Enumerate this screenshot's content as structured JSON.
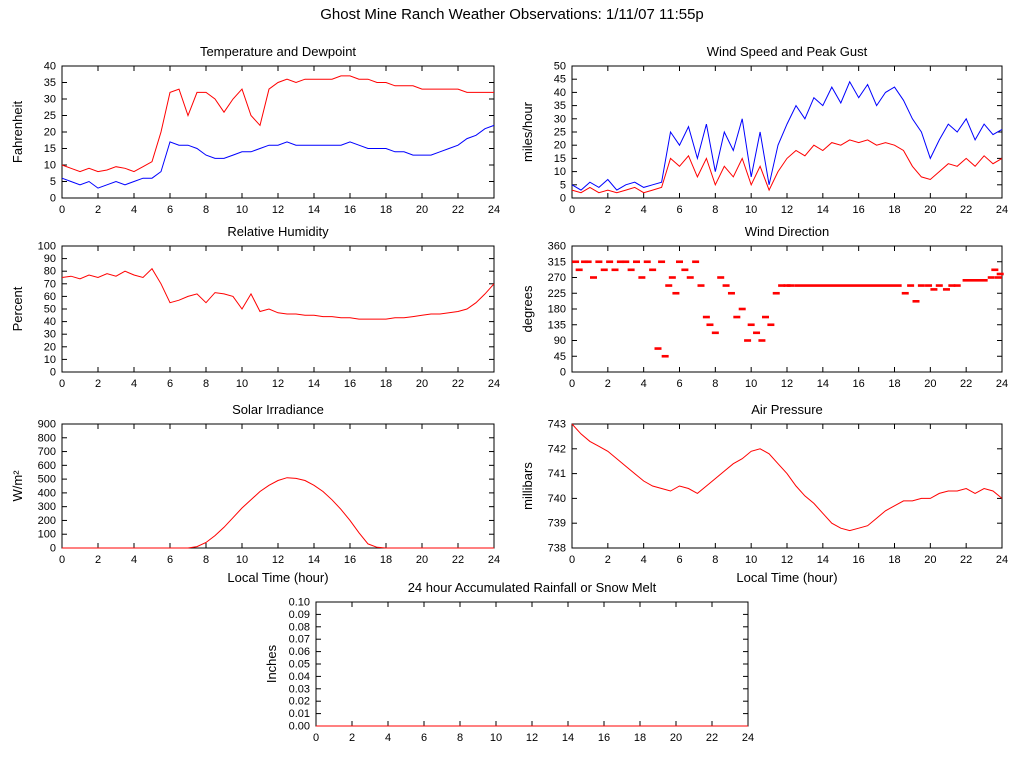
{
  "page_title": "Ghost Mine Ranch Weather Observations: 1/11/07 11:55p",
  "colors": {
    "red": "#ff0000",
    "blue": "#0000ff",
    "axis": "#000000"
  },
  "chart_data": [
    {
      "id": "temperature-dewpoint",
      "type": "line",
      "title": "Temperature and Dewpoint",
      "ylabel": "Fahrenheit",
      "xlabel": "",
      "xlim": [
        0,
        24
      ],
      "xtick": 2,
      "ylim": [
        0,
        40
      ],
      "ytick": 5,
      "ydec": 0,
      "x_start": 0,
      "x_step": 0.5,
      "series": [
        {
          "name": "Temperature",
          "color": "#ff0000",
          "values": [
            10,
            9,
            8,
            9,
            8,
            8.5,
            9.5,
            9,
            8,
            9.5,
            11,
            20,
            32,
            33,
            25,
            32,
            32,
            30,
            26,
            30,
            33,
            25,
            22,
            33,
            35,
            36,
            35,
            36,
            36,
            36,
            36,
            37,
            37,
            36,
            36,
            35,
            35,
            34,
            34,
            34,
            33,
            33,
            33,
            33,
            33,
            32,
            32,
            32,
            32
          ]
        },
        {
          "name": "Dewpoint",
          "color": "#0000ff",
          "values": [
            6,
            5,
            4,
            5,
            3,
            4,
            5,
            4,
            5,
            6,
            6,
            8,
            17,
            16,
            16,
            15,
            13,
            12,
            12,
            13,
            14,
            14,
            15,
            16,
            16,
            17,
            16,
            16,
            16,
            16,
            16,
            16,
            17,
            16,
            15,
            15,
            15,
            14,
            14,
            13,
            13,
            13,
            14,
            15,
            16,
            18,
            19,
            21,
            22
          ]
        }
      ]
    },
    {
      "id": "wind-speed-gust",
      "type": "line",
      "title": "Wind Speed and Peak Gust",
      "ylabel": "miles/hour",
      "xlabel": "",
      "xlim": [
        0,
        24
      ],
      "xtick": 2,
      "ylim": [
        0,
        50
      ],
      "ytick": 5,
      "ydec": 0,
      "x_start": 0,
      "x_step": 0.5,
      "series": [
        {
          "name": "Peak Gust",
          "color": "#0000ff",
          "values": [
            5,
            3,
            6,
            4,
            7,
            3,
            5,
            6,
            4,
            5,
            6,
            25,
            20,
            27,
            15,
            28,
            10,
            25,
            18,
            30,
            8,
            25,
            5,
            20,
            28,
            35,
            30,
            38,
            35,
            42,
            36,
            44,
            38,
            43,
            35,
            40,
            42,
            37,
            30,
            25,
            15,
            22,
            28,
            25,
            30,
            22,
            28,
            24,
            26
          ]
        },
        {
          "name": "Wind Speed",
          "color": "#ff0000",
          "values": [
            3,
            2,
            4,
            2,
            3,
            2,
            3,
            4,
            2,
            3,
            4,
            15,
            12,
            16,
            8,
            15,
            5,
            12,
            8,
            15,
            5,
            12,
            3,
            10,
            15,
            18,
            16,
            20,
            18,
            21,
            20,
            22,
            21,
            22,
            20,
            21,
            20,
            18,
            12,
            8,
            7,
            10,
            13,
            12,
            15,
            12,
            16,
            13,
            15
          ]
        }
      ]
    },
    {
      "id": "relative-humidity",
      "type": "line",
      "title": "Relative Humidity",
      "ylabel": "Percent",
      "xlabel": "",
      "xlim": [
        0,
        24
      ],
      "xtick": 2,
      "ylim": [
        0,
        100
      ],
      "ytick": 10,
      "ydec": 0,
      "x_start": 0,
      "x_step": 0.5,
      "series": [
        {
          "name": "Relative Humidity",
          "color": "#ff0000",
          "values": [
            75,
            76,
            74,
            77,
            75,
            78,
            76,
            80,
            77,
            75,
            82,
            70,
            55,
            57,
            60,
            62,
            55,
            63,
            62,
            60,
            50,
            62,
            48,
            50,
            47,
            46,
            46,
            45,
            45,
            44,
            44,
            43,
            43,
            42,
            42,
            42,
            42,
            43,
            43,
            44,
            45,
            46,
            46,
            47,
            48,
            50,
            55,
            62,
            70
          ]
        }
      ]
    },
    {
      "id": "wind-direction",
      "type": "scatter",
      "title": "Wind Direction",
      "ylabel": "degrees",
      "xlabel": "",
      "xlim": [
        0,
        24
      ],
      "xtick": 2,
      "ylim": [
        0,
        360
      ],
      "ytick": 45,
      "ydec": 0,
      "marker": "dash",
      "color": "#ff0000",
      "points": [
        [
          0.2,
          315
        ],
        [
          0.4,
          292
        ],
        [
          0.7,
          315
        ],
        [
          0.9,
          315
        ],
        [
          1.2,
          270
        ],
        [
          1.5,
          315
        ],
        [
          1.8,
          292
        ],
        [
          2.1,
          315
        ],
        [
          2.4,
          292
        ],
        [
          2.7,
          315
        ],
        [
          3.0,
          315
        ],
        [
          3.3,
          292
        ],
        [
          3.6,
          315
        ],
        [
          3.9,
          270
        ],
        [
          4.2,
          315
        ],
        [
          4.5,
          292
        ],
        [
          4.8,
          67
        ],
        [
          5.0,
          315
        ],
        [
          5.2,
          45
        ],
        [
          5.4,
          247
        ],
        [
          5.6,
          270
        ],
        [
          5.8,
          225
        ],
        [
          6.0,
          315
        ],
        [
          6.3,
          292
        ],
        [
          6.6,
          270
        ],
        [
          6.9,
          315
        ],
        [
          7.2,
          247
        ],
        [
          7.5,
          157
        ],
        [
          7.7,
          135
        ],
        [
          8.0,
          112
        ],
        [
          8.3,
          270
        ],
        [
          8.6,
          247
        ],
        [
          8.9,
          225
        ],
        [
          9.2,
          157
        ],
        [
          9.5,
          180
        ],
        [
          9.8,
          90
        ],
        [
          10.0,
          135
        ],
        [
          10.3,
          112
        ],
        [
          10.6,
          90
        ],
        [
          10.8,
          157
        ],
        [
          11.1,
          135
        ],
        [
          11.4,
          225
        ],
        [
          11.7,
          247
        ],
        [
          12.0,
          247
        ],
        [
          12.2,
          247
        ],
        [
          18.6,
          225
        ],
        [
          18.9,
          247
        ],
        [
          19.2,
          202
        ],
        [
          19.5,
          247
        ],
        [
          19.9,
          247
        ],
        [
          20.2,
          236
        ],
        [
          20.5,
          247
        ],
        [
          20.9,
          236
        ],
        [
          21.2,
          247
        ],
        [
          21.5,
          247
        ],
        [
          23.4,
          270
        ],
        [
          23.6,
          292
        ],
        [
          23.8,
          270
        ],
        [
          23.9,
          280
        ]
      ],
      "segments": [
        [
          12.4,
          18.4,
          247
        ],
        [
          21.8,
          23.2,
          262
        ]
      ]
    },
    {
      "id": "solar-irradiance",
      "type": "line",
      "title": "Solar Irradiance",
      "ylabel": "W/m²",
      "xlabel": "Local Time (hour)",
      "xlim": [
        0,
        24
      ],
      "xtick": 2,
      "ylim": [
        0,
        900
      ],
      "ytick": 100,
      "ydec": 0,
      "x_start": 0,
      "x_step": 0.5,
      "series": [
        {
          "name": "Solar Irradiance",
          "color": "#ff0000",
          "values": [
            0,
            0,
            0,
            0,
            0,
            0,
            0,
            0,
            0,
            0,
            0,
            0,
            0,
            0,
            0,
            10,
            40,
            90,
            150,
            220,
            290,
            350,
            410,
            455,
            490,
            510,
            505,
            490,
            455,
            410,
            350,
            280,
            200,
            110,
            30,
            5,
            0,
            0,
            0,
            0,
            0,
            0,
            0,
            0,
            0,
            0,
            0,
            0,
            0
          ]
        }
      ]
    },
    {
      "id": "air-pressure",
      "type": "line",
      "title": "Air Pressure",
      "ylabel": "millibars",
      "xlabel": "Local Time (hour)",
      "xlim": [
        0,
        24
      ],
      "xtick": 2,
      "ylim": [
        738,
        743
      ],
      "ytick": 1,
      "ydec": 0,
      "x_start": 0,
      "x_step": 0.5,
      "series": [
        {
          "name": "Air Pressure",
          "color": "#ff0000",
          "values": [
            743.0,
            742.6,
            742.3,
            742.1,
            741.9,
            741.6,
            741.3,
            741.0,
            740.7,
            740.5,
            740.4,
            740.3,
            740.5,
            740.4,
            740.2,
            740.5,
            740.8,
            741.1,
            741.4,
            741.6,
            741.9,
            742.0,
            741.8,
            741.4,
            741.0,
            740.5,
            740.1,
            739.8,
            739.4,
            739.0,
            738.8,
            738.7,
            738.8,
            738.9,
            739.2,
            739.5,
            739.7,
            739.9,
            739.9,
            740.0,
            740.0,
            740.2,
            740.3,
            740.3,
            740.4,
            740.2,
            740.4,
            740.3,
            740.0
          ]
        }
      ]
    },
    {
      "id": "rainfall",
      "type": "line",
      "title": "24 hour Accumulated Rainfall or Snow Melt",
      "ylabel": "Inches",
      "xlabel": "",
      "xlim": [
        0,
        24
      ],
      "xtick": 2,
      "ylim": [
        0,
        0.1
      ],
      "ytick": 0.01,
      "ydec": 2,
      "x_start": 0,
      "x_step": 24,
      "series": [
        {
          "name": "Accumulated Rainfall",
          "color": "#ff0000",
          "values": [
            0,
            0
          ]
        }
      ]
    }
  ]
}
